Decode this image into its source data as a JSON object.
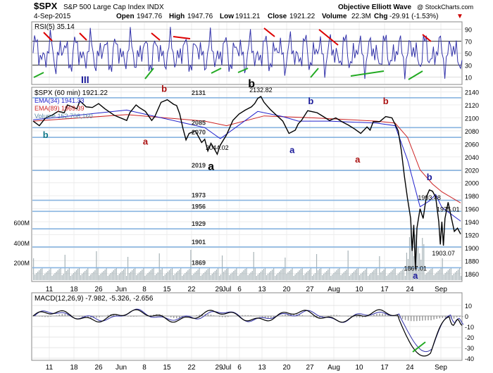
{
  "header": {
    "symbol": "$SPX",
    "name": "S&P 500 Large Cap Index INDX",
    "date": "4-Sep-2015",
    "watermark": "Objective Elliott Wave",
    "copyright": "@ StockCharts.com",
    "open_label": "Open",
    "open": "1947.76",
    "high_label": "High",
    "high": "1947.76",
    "low_label": "Low",
    "low": "1911.21",
    "close_label": "Close",
    "close": "1921.22",
    "volume_label": "Volume",
    "volume": "22.3M",
    "chg_label": "Chg",
    "chg": "-29.91 (-1.53%)"
  },
  "rsi": {
    "label": "RSI(5) 35.14",
    "levels": [
      "90",
      "70",
      "50",
      "30",
      "10"
    ],
    "wave_label": "III",
    "colors": {
      "line": "#3333aa",
      "fill": "#000044",
      "red": "#dd0000",
      "green": "#22aa22"
    }
  },
  "price_legend": {
    "title": "$SPX (60 min) 1921.22",
    "ema34": "EMA(34) 1941.33",
    "ema89": "EMA(89) 1969.39",
    "volume": "Volume 152,706,160"
  },
  "macd": {
    "label": "MACD(12,26,9) -7.982, -5.326, -2.656",
    "levels": [
      "10",
      "0",
      "-10",
      "-20",
      "-30",
      "-40"
    ]
  },
  "x_labels": [
    "11",
    "18",
    "26",
    "Jun",
    "8",
    "15",
    "22",
    "29",
    "Jul",
    "6",
    "13",
    "20",
    "27",
    "Aug",
    "10",
    "17",
    "24",
    "Sep"
  ],
  "volume_axis": [
    "600M",
    "400M",
    "200M"
  ],
  "colors": {
    "price": "#000000",
    "ema34": "#2222cc",
    "ema89": "#cc2222",
    "hline": "#88b4e0",
    "wave_red": "#aa1111",
    "wave_blue": "#1a1a99",
    "wave_black": "#000000",
    "wave_teal": "#117788"
  },
  "chart_data": {
    "type": "line",
    "title": "$SPX (60 min) 1921.22",
    "x_dates": [
      "May 11",
      "May 18",
      "May 26",
      "Jun 1",
      "Jun 8",
      "Jun 15",
      "Jun 22",
      "Jun 29",
      "Jul 1",
      "Jul 6",
      "Jul 13",
      "Jul 20",
      "Jul 27",
      "Aug 3",
      "Aug 10",
      "Aug 17",
      "Aug 24",
      "Sep 1"
    ],
    "ylim": [
      1850,
      2145
    ],
    "y_ticks": [
      2140,
      2120,
      2100,
      2080,
      2060,
      2040,
      2020,
      2000,
      1980,
      1960,
      1940,
      1920,
      1900,
      1880,
      1860
    ],
    "price_keypoints": [
      [
        0,
        2095
      ],
      [
        2,
        2088
      ],
      [
        4,
        2100
      ],
      [
        6,
        2104
      ],
      [
        8,
        2110
      ],
      [
        10,
        2108
      ],
      [
        11,
        2120
      ],
      [
        12,
        2118
      ],
      [
        14,
        2114
      ],
      [
        15,
        2126
      ],
      [
        17,
        2117
      ],
      [
        19,
        2116
      ],
      [
        21,
        2122
      ],
      [
        23,
        2114
      ],
      [
        26,
        2104
      ],
      [
        28,
        2100
      ],
      [
        30,
        2096
      ],
      [
        31,
        2108
      ],
      [
        33,
        2120
      ],
      [
        34,
        2116
      ],
      [
        36,
        2110
      ],
      [
        38,
        2096
      ],
      [
        39,
        2102
      ],
      [
        41,
        2124
      ],
      [
        43,
        2128
      ],
      [
        45,
        2121
      ],
      [
        46,
        2119
      ],
      [
        47,
        2106
      ],
      [
        48,
        2084
      ],
      [
        49,
        2066
      ],
      [
        50,
        2076
      ],
      [
        52,
        2080
      ],
      [
        54,
        2062
      ],
      [
        55,
        2067
      ],
      [
        56,
        2049
      ],
      [
        57,
        2061
      ],
      [
        58,
        2053
      ],
      [
        59,
        2044
      ],
      [
        60,
        2058
      ],
      [
        62,
        2074
      ],
      [
        64,
        2096
      ],
      [
        66,
        2106
      ],
      [
        68,
        2112
      ],
      [
        70,
        2117
      ],
      [
        71,
        2122
      ],
      [
        72,
        2130
      ],
      [
        73,
        2133
      ],
      [
        74,
        2124
      ],
      [
        76,
        2113
      ],
      [
        78,
        2104
      ],
      [
        80,
        2095
      ],
      [
        82,
        2076
      ],
      [
        84,
        2081
      ],
      [
        85,
        2091
      ],
      [
        86,
        2096
      ],
      [
        88,
        2111
      ],
      [
        90,
        2109
      ],
      [
        91,
        2108
      ],
      [
        93,
        2102
      ],
      [
        95,
        2096
      ],
      [
        97,
        2100
      ],
      [
        99,
        2094
      ],
      [
        101,
        2089
      ],
      [
        103,
        2083
      ],
      [
        105,
        2076
      ],
      [
        107,
        2086
      ],
      [
        108,
        2081
      ],
      [
        109,
        2094
      ],
      [
        111,
        2094
      ],
      [
        113,
        2102
      ],
      [
        115,
        2100
      ],
      [
        116,
        2090
      ],
      [
        117,
        2080
      ],
      [
        118,
        2050
      ],
      [
        119,
        2010
      ],
      [
        120,
        1975
      ],
      [
        121,
        1945
      ],
      [
        121.5,
        1895
      ],
      [
        122,
        1935
      ],
      [
        122.5,
        1867
      ],
      [
        123,
        1930
      ],
      [
        124,
        1960
      ],
      [
        125,
        1945
      ],
      [
        126,
        1978
      ],
      [
        127,
        1989
      ],
      [
        128,
        1987
      ],
      [
        129,
        1978
      ],
      [
        130,
        1940
      ],
      [
        130.5,
        1905
      ],
      [
        131,
        1940
      ],
      [
        131.5,
        1903
      ],
      [
        132,
        1945
      ],
      [
        133,
        1970
      ],
      [
        134,
        1947
      ],
      [
        135,
        1925
      ],
      [
        136,
        1930
      ],
      [
        137,
        1921
      ]
    ],
    "ema34_keypoints": [
      [
        0,
        2097
      ],
      [
        30,
        2112
      ],
      [
        55,
        2085
      ],
      [
        60,
        2068
      ],
      [
        72,
        2110
      ],
      [
        80,
        2102
      ],
      [
        85,
        2095
      ],
      [
        95,
        2095
      ],
      [
        110,
        2092
      ],
      [
        116,
        2088
      ],
      [
        120,
        2035
      ],
      [
        124,
        1963
      ],
      [
        127,
        1972
      ],
      [
        129,
        1982
      ],
      [
        131,
        1962
      ],
      [
        137,
        1941
      ]
    ],
    "ema89_keypoints": [
      [
        0,
        2095
      ],
      [
        30,
        2105
      ],
      [
        55,
        2095
      ],
      [
        62,
        2088
      ],
      [
        74,
        2103
      ],
      [
        90,
        2100
      ],
      [
        110,
        2095
      ],
      [
        116,
        2092
      ],
      [
        120,
        2070
      ],
      [
        124,
        2020
      ],
      [
        128,
        1998
      ],
      [
        131,
        1986
      ],
      [
        137,
        1969
      ]
    ],
    "horizontal_levels": [
      {
        "label": "2131",
        "value": 2131
      },
      {
        "label": "2085",
        "value": 2085
      },
      {
        "label": "2070",
        "value": 2070
      },
      {
        "label": "2019",
        "value": 2019
      },
      {
        "label": "1973",
        "value": 1973
      },
      {
        "label": "1956",
        "value": 1956
      },
      {
        "label": "1929",
        "value": 1929
      },
      {
        "label": "1901",
        "value": 1901
      },
      {
        "label": "1869",
        "value": 1869
      }
    ],
    "annotations": [
      {
        "text": "2132.82",
        "x": 73,
        "y": 2133
      },
      {
        "text": "2044.02",
        "x": 59,
        "y": 2044
      },
      {
        "text": "1993.48",
        "x": 127,
        "y": 1989
      },
      {
        "text": "1975.01",
        "x": 133,
        "y": 1971
      },
      {
        "text": "1903.07",
        "x": 131.5,
        "y": 1903
      },
      {
        "text": "1867.01",
        "x": 122.5,
        "y": 1867
      }
    ],
    "wave_labels": [
      {
        "text": "b",
        "color": "wave_teal",
        "x": 4,
        "y": 2069
      },
      {
        "text": "b",
        "color": "wave_red",
        "x": 42,
        "y": 2140
      },
      {
        "text": "a",
        "color": "wave_red",
        "x": 36,
        "y": 2059
      },
      {
        "text": "a",
        "color": "wave_black",
        "x": 57,
        "y": 2020
      },
      {
        "text": "b",
        "color": "wave_black",
        "x": 70,
        "y": 2147
      },
      {
        "text": "a",
        "color": "wave_blue",
        "x": 83,
        "y": 2046
      },
      {
        "text": "b",
        "color": "wave_blue",
        "x": 89,
        "y": 2121
      },
      {
        "text": "a",
        "color": "wave_red",
        "x": 104,
        "y": 2031
      },
      {
        "text": "b",
        "color": "wave_red",
        "x": 113,
        "y": 2121
      },
      {
        "text": "b",
        "color": "wave_blue",
        "x": 127,
        "y": 2004
      },
      {
        "text": "a",
        "color": "wave_blue",
        "x": 122.5,
        "y": 1852
      }
    ]
  }
}
